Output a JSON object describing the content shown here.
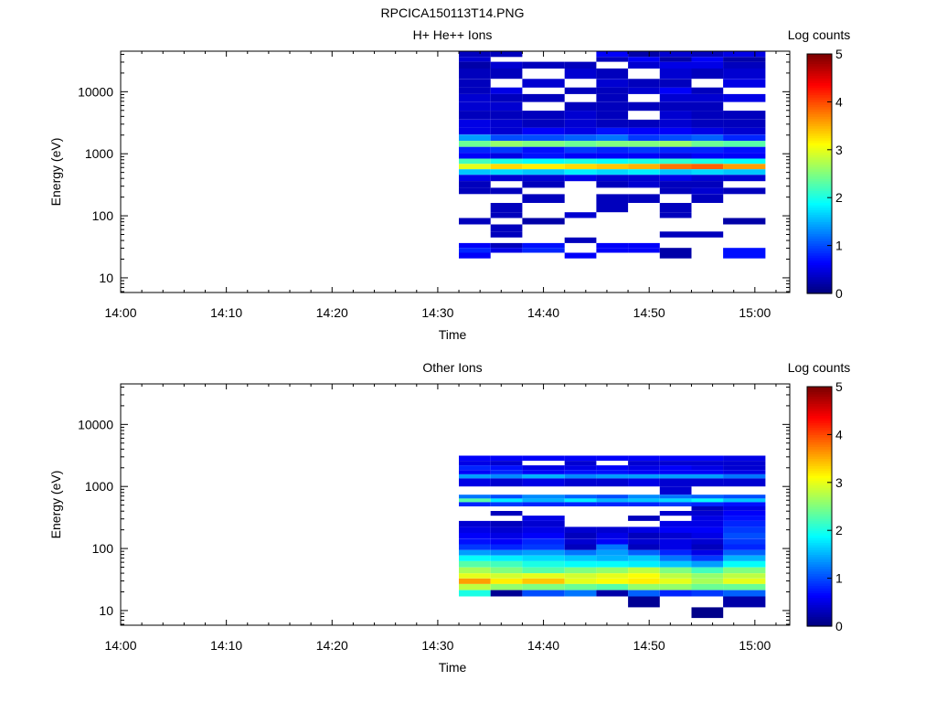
{
  "page_title": "RPCICA150113T14.PNG",
  "chart_data": [
    {
      "type": "heatmap",
      "title": "H+ He++ Ions",
      "xlabel": "Time",
      "ylabel": "Energy (eV)",
      "x_ticks": [
        "14:00",
        "14:10",
        "14:20",
        "14:30",
        "14:40",
        "14:50",
        "15:00"
      ],
      "y_scale": "log",
      "y_ticks": [
        "10",
        "100",
        "1000",
        "10000"
      ],
      "colorbar": {
        "label": "Log counts",
        "range": [
          0,
          5
        ],
        "ticks": [
          "0",
          "1",
          "2",
          "3",
          "4",
          "5"
        ]
      },
      "time_columns": [
        "14:32",
        "14:35",
        "14:38",
        "14:42",
        "14:45",
        "14:48",
        "14:51",
        "14:54",
        "14:57",
        "15:01"
      ],
      "bands": [
        {
          "e": 40000,
          "v": [
            0.3,
            0.3,
            null,
            null,
            0.6,
            0.2,
            0.4,
            0.3,
            0.5,
            null
          ]
        },
        {
          "e": 33000,
          "v": [
            0.4,
            null,
            null,
            null,
            0.3,
            0.6,
            0.2,
            0.6,
            0.2,
            null
          ]
        },
        {
          "e": 28000,
          "v": [
            0.2,
            0.4,
            0.3,
            0.3,
            null,
            0.4,
            0.5,
            0.5,
            0.3,
            null
          ]
        },
        {
          "e": 20000,
          "v": [
            0.3,
            0.3,
            null,
            0.4,
            0.3,
            null,
            0.4,
            0.3,
            0.4,
            null
          ]
        },
        {
          "e": 13000,
          "v": [
            0.3,
            null,
            0.4,
            null,
            0.4,
            0.3,
            0.3,
            null,
            0.5,
            null
          ]
        },
        {
          "e": 10500,
          "v": [
            0.3,
            0.5,
            null,
            0.3,
            0.3,
            0.4,
            0.6,
            0.3,
            null,
            null
          ]
        },
        {
          "e": 8000,
          "v": [
            0.4,
            0.3,
            0.3,
            null,
            0.3,
            null,
            0.4,
            0.4,
            0.5,
            null
          ]
        },
        {
          "e": 5800,
          "v": [
            0.4,
            0.4,
            null,
            0.3,
            0.3,
            0.3,
            0.3,
            0.3,
            null,
            null
          ]
        },
        {
          "e": 4200,
          "v": [
            0.3,
            0.3,
            0.3,
            0.4,
            0.3,
            null,
            0.4,
            0.3,
            0.3,
            null
          ]
        },
        {
          "e": 3000,
          "v": [
            0.5,
            0.4,
            0.3,
            0.4,
            0.3,
            0.3,
            0.4,
            0.3,
            0.3,
            null
          ]
        },
        {
          "e": 2300,
          "v": [
            0.5,
            0.4,
            0.6,
            0.5,
            0.7,
            0.6,
            0.6,
            0.5,
            0.4,
            null
          ]
        },
        {
          "e": 1800,
          "v": [
            1.4,
            1.0,
            1.0,
            1.1,
            1.2,
            0.9,
            1.0,
            1.1,
            0.8,
            null
          ]
        },
        {
          "e": 1450,
          "v": [
            2.4,
            2.6,
            2.5,
            2.4,
            2.5,
            2.5,
            2.6,
            2.4,
            2.3,
            null
          ]
        },
        {
          "e": 1150,
          "v": [
            0.8,
            0.9,
            0.7,
            0.9,
            0.8,
            0.9,
            0.8,
            0.8,
            0.7,
            null
          ]
        },
        {
          "e": 920,
          "v": [
            0.6,
            0.5,
            0.7,
            0.6,
            0.6,
            0.6,
            0.5,
            0.6,
            0.6,
            null
          ]
        },
        {
          "e": 760,
          "v": [
            2.2,
            2.0,
            1.9,
            2.0,
            1.9,
            2.0,
            2.1,
            2.0,
            1.9,
            null
          ]
        },
        {
          "e": 620,
          "v": [
            3.0,
            3.3,
            3.2,
            3.3,
            3.4,
            3.5,
            3.8,
            3.9,
            3.6,
            null
          ]
        },
        {
          "e": 510,
          "v": [
            1.6,
            1.7,
            1.6,
            1.8,
            1.7,
            1.8,
            1.6,
            1.7,
            1.6,
            null
          ]
        },
        {
          "e": 410,
          "v": [
            0.5,
            0.4,
            0.4,
            0.5,
            0.4,
            0.4,
            0.5,
            0.4,
            0.4,
            null
          ]
        },
        {
          "e": 320,
          "v": [
            0.3,
            null,
            0.3,
            null,
            0.3,
            0.4,
            0.3,
            0.3,
            null,
            null
          ]
        },
        {
          "e": 250,
          "v": [
            0.3,
            0.3,
            null,
            null,
            null,
            null,
            0.3,
            0.4,
            0.3,
            null
          ]
        },
        {
          "e": 200,
          "v": [
            null,
            null,
            0.3,
            null,
            0.3,
            0.3,
            null,
            0.3,
            null,
            null
          ]
        },
        {
          "e": 130,
          "v": [
            null,
            0.3,
            null,
            null,
            0.3,
            null,
            0.3,
            null,
            null,
            null
          ]
        },
        {
          "e": 100,
          "v": [
            null,
            0.3,
            null,
            0.4,
            null,
            null,
            0.3,
            null,
            null,
            null
          ]
        },
        {
          "e": 85,
          "v": [
            0.3,
            null,
            0.2,
            null,
            null,
            null,
            null,
            null,
            0.2,
            null
          ]
        },
        {
          "e": 62,
          "v": [
            null,
            0.3,
            null,
            null,
            null,
            null,
            null,
            null,
            null,
            null
          ]
        },
        {
          "e": 50,
          "v": [
            null,
            0.3,
            null,
            null,
            null,
            null,
            0.3,
            0.3,
            null,
            null
          ]
        },
        {
          "e": 40,
          "v": [
            null,
            null,
            null,
            0.3,
            null,
            null,
            null,
            null,
            null,
            null
          ]
        },
        {
          "e": 33,
          "v": [
            0.6,
            0.3,
            0.7,
            null,
            0.6,
            0.6,
            null,
            null,
            null,
            null
          ]
        },
        {
          "e": 28,
          "v": [
            0.8,
            0.5,
            0.8,
            null,
            0.6,
            0.6,
            0.2,
            null,
            0.7,
            null
          ]
        },
        {
          "e": 23,
          "v": [
            0.6,
            null,
            null,
            0.6,
            null,
            null,
            0.2,
            null,
            0.7,
            null
          ]
        }
      ]
    },
    {
      "type": "heatmap",
      "title": "Other Ions",
      "xlabel": "Time",
      "ylabel": "Energy (eV)",
      "x_ticks": [
        "14:00",
        "14:10",
        "14:20",
        "14:30",
        "14:40",
        "14:50",
        "15:00"
      ],
      "y_scale": "log",
      "y_ticks": [
        "10",
        "100",
        "1000",
        "10000"
      ],
      "colorbar": {
        "label": "Log counts",
        "range": [
          0,
          5
        ],
        "ticks": [
          "0",
          "1",
          "2",
          "3",
          "4",
          "5"
        ]
      },
      "time_columns": [
        "14:32",
        "14:35",
        "14:38",
        "14:42",
        "14:45",
        "14:48",
        "14:51",
        "14:54",
        "14:57",
        "15:01"
      ],
      "bands": [
        {
          "e": 2800,
          "v": [
            0.6,
            0.6,
            0.6,
            0.6,
            0.6,
            0.6,
            0.6,
            0.6,
            0.5,
            null
          ]
        },
        {
          "e": 2400,
          "v": [
            0.5,
            0.4,
            null,
            0.4,
            null,
            0.4,
            0.4,
            0.4,
            0.4,
            null
          ]
        },
        {
          "e": 2000,
          "v": [
            0.8,
            0.7,
            0.5,
            0.5,
            0.6,
            0.5,
            0.6,
            0.5,
            0.4,
            null
          ]
        },
        {
          "e": 1700,
          "v": [
            0.6,
            0.8,
            0.6,
            0.7,
            0.7,
            0.6,
            0.6,
            0.6,
            0.5,
            null
          ]
        },
        {
          "e": 1450,
          "v": [
            1.4,
            1.3,
            1.5,
            1.3,
            1.4,
            1.4,
            1.4,
            1.4,
            1.2,
            null
          ]
        },
        {
          "e": 1250,
          "v": [
            0.5,
            0.4,
            0.5,
            0.4,
            0.4,
            0.5,
            0.4,
            0.4,
            0.4,
            null
          ]
        },
        {
          "e": 800,
          "v": [
            null,
            null,
            null,
            null,
            null,
            null,
            0.4,
            null,
            null,
            null
          ]
        },
        {
          "e": 680,
          "v": [
            1.2,
            1.0,
            1.3,
            1.1,
            1.0,
            1.3,
            1.2,
            1.1,
            1.0,
            null
          ]
        },
        {
          "e": 600,
          "v": [
            2.3,
            1.8,
            1.5,
            1.8,
            1.5,
            1.6,
            1.7,
            1.9,
            1.6,
            null
          ]
        },
        {
          "e": 520,
          "v": [
            0.8,
            0.9,
            0.8,
            0.8,
            0.8,
            0.8,
            0.9,
            0.8,
            0.7,
            null
          ]
        },
        {
          "e": 440,
          "v": [
            null,
            null,
            null,
            null,
            null,
            null,
            null,
            0.3,
            0.5,
            null
          ]
        },
        {
          "e": 370,
          "v": [
            null,
            0.3,
            null,
            null,
            null,
            null,
            0.4,
            0.4,
            0.6,
            null
          ]
        },
        {
          "e": 310,
          "v": [
            null,
            null,
            0.5,
            null,
            null,
            0.3,
            null,
            0.5,
            0.7,
            null
          ]
        },
        {
          "e": 250,
          "v": [
            0.4,
            0.3,
            0.4,
            null,
            null,
            null,
            0.5,
            0.5,
            0.8,
            null
          ]
        },
        {
          "e": 200,
          "v": [
            0.5,
            0.4,
            0.5,
            0.4,
            0.4,
            0.5,
            0.6,
            0.6,
            0.9,
            null
          ]
        },
        {
          "e": 160,
          "v": [
            0.6,
            0.5,
            0.6,
            0.3,
            0.5,
            0.3,
            0.4,
            0.5,
            1.0,
            null
          ]
        },
        {
          "e": 130,
          "v": [
            0.7,
            0.6,
            0.8,
            0.4,
            0.6,
            0.4,
            0.5,
            0.4,
            0.9,
            null
          ]
        },
        {
          "e": 105,
          "v": [
            0.9,
            0.8,
            0.9,
            0.3,
            1.2,
            0.3,
            0.5,
            0.3,
            0.8,
            null
          ]
        },
        {
          "e": 85,
          "v": [
            1.4,
            1.3,
            1.4,
            1.2,
            1.4,
            1.1,
            0.8,
            0.5,
            1.1,
            null
          ]
        },
        {
          "e": 70,
          "v": [
            1.9,
            1.8,
            1.7,
            1.6,
            1.5,
            1.6,
            1.2,
            0.9,
            1.5,
            null
          ]
        },
        {
          "e": 56,
          "v": [
            2.3,
            2.2,
            2.0,
            1.9,
            1.9,
            1.8,
            1.6,
            1.4,
            1.9,
            null
          ]
        },
        {
          "e": 44,
          "v": [
            2.7,
            2.5,
            2.3,
            2.5,
            2.6,
            2.8,
            2.5,
            2.2,
            2.5,
            null
          ]
        },
        {
          "e": 36,
          "v": [
            3.0,
            2.9,
            3.0,
            2.9,
            3.0,
            3.1,
            2.8,
            2.6,
            2.8,
            null
          ]
        },
        {
          "e": 30,
          "v": [
            3.6,
            3.2,
            3.4,
            3.0,
            3.1,
            3.2,
            3.0,
            2.7,
            3.0,
            null
          ]
        },
        {
          "e": 24,
          "v": [
            2.8,
            2.6,
            2.5,
            2.4,
            2.3,
            2.6,
            2.6,
            2.4,
            2.4,
            null
          ]
        },
        {
          "e": 19,
          "v": [
            2.0,
            0.1,
            1.0,
            1.2,
            0.2,
            1.1,
            0.8,
            0.9,
            1.1,
            null
          ]
        },
        {
          "e": 15,
          "v": [
            null,
            null,
            null,
            null,
            null,
            0.1,
            null,
            null,
            0.2,
            null
          ]
        },
        {
          "e": 8.5,
          "v": [
            null,
            null,
            null,
            null,
            null,
            null,
            null,
            0.05,
            null,
            null
          ]
        }
      ]
    }
  ]
}
